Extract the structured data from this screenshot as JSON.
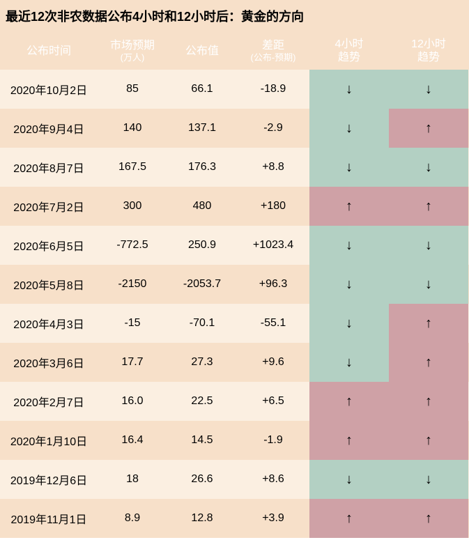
{
  "title": "最近12次非农数据公布4小时和12小时后：黄金的方向",
  "header": {
    "date": "公布时间",
    "expected": "市场预期",
    "expected_sub": "(万人)",
    "published": "公布值",
    "diff": "差距",
    "diff_sub": "(公布-预期)",
    "trend4": "4小时\n趋势",
    "trend4_l1": "4小时",
    "trend4_l2": "趋势",
    "trend12_l1": "12小时",
    "trend12_l2": "趋势"
  },
  "colors": {
    "bg_even": "#fbefe1",
    "bg_odd": "#f7e0c9",
    "trend_up": "#cfa1a6",
    "trend_down": "#b3d0c3",
    "header_text": "#ffffff",
    "title_text": "#000000",
    "body_text": "#000000",
    "arrow_up": "↑",
    "arrow_down": "↓"
  },
  "rows": [
    {
      "date": "2020年10月2日",
      "expected": "85",
      "published": "66.1",
      "diff": "-18.9",
      "t4": "down",
      "t12": "down"
    },
    {
      "date": "2020年9月4日",
      "expected": "140",
      "published": "137.1",
      "diff": "-2.9",
      "t4": "down",
      "t12": "up"
    },
    {
      "date": "2020年8月7日",
      "expected": "167.5",
      "published": "176.3",
      "diff": "+8.8",
      "t4": "down",
      "t12": "down"
    },
    {
      "date": "2020年7月2日",
      "expected": "300",
      "published": "480",
      "diff": "+180",
      "t4": "up",
      "t12": "up"
    },
    {
      "date": "2020年6月5日",
      "expected": "-772.5",
      "published": "250.9",
      "diff": "+1023.4",
      "t4": "down",
      "t12": "down"
    },
    {
      "date": "2020年5月8日",
      "expected": "-2150",
      "published": "-2053.7",
      "diff": "+96.3",
      "t4": "down",
      "t12": "down"
    },
    {
      "date": "2020年4月3日",
      "expected": "-15",
      "published": "-70.1",
      "diff": "-55.1",
      "t4": "down",
      "t12": "up"
    },
    {
      "date": "2020年3月6日",
      "expected": "17.7",
      "published": "27.3",
      "diff": "+9.6",
      "t4": "down",
      "t12": "up"
    },
    {
      "date": "2020年2月7日",
      "expected": "16.0",
      "published": "22.5",
      "diff": "+6.5",
      "t4": "up",
      "t12": "up"
    },
    {
      "date": "2020年1月10日",
      "expected": "16.4",
      "published": "14.5",
      "diff": "-1.9",
      "t4": "up",
      "t12": "up"
    },
    {
      "date": "2019年12月6日",
      "expected": "18",
      "published": "26.6",
      "diff": "+8.6",
      "t4": "down",
      "t12": "down"
    },
    {
      "date": "2019年11月1日",
      "expected": "8.9",
      "published": "12.8",
      "diff": "+3.9",
      "t4": "up",
      "t12": "up"
    }
  ]
}
